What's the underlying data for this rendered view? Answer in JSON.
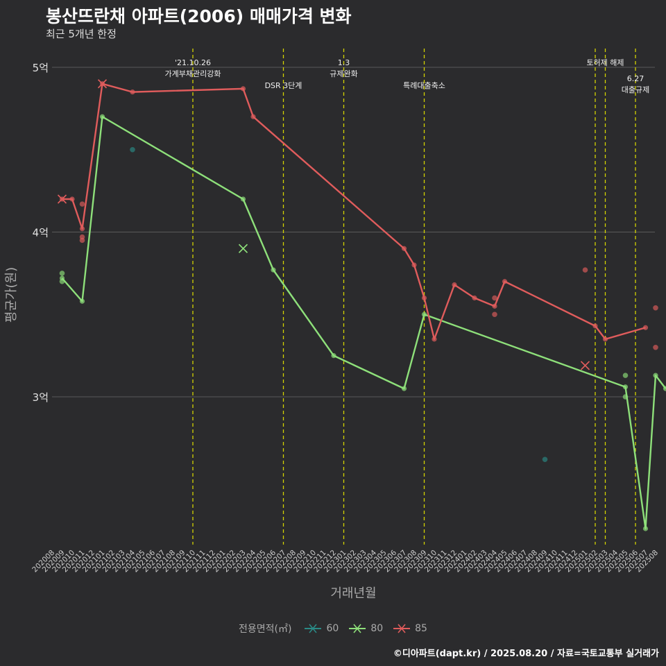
{
  "header": {
    "title": "봉산뜨란채 아파트(2006) 매매가격 변화",
    "subtitle": "최근 5개년 한정"
  },
  "caption": "©디아파트(dapt.kr) / 2025.08.20 / 자료=국토교통부 실거래가",
  "colors": {
    "60": "#2a8a86",
    "80": "#8ee07a",
    "85": "#e05c5c",
    "event": "#d4d400",
    "grid": "#5a5a5a",
    "background": "#2b2b2d"
  },
  "chart_data": {
    "type": "line",
    "xlabel": "거래년월",
    "ylabel": "평균가(원)",
    "ylim": [
      2.1,
      5.15
    ],
    "yticks": [
      {
        "value": 3,
        "label": "3억"
      },
      {
        "value": 4,
        "label": "4억"
      },
      {
        "value": 5,
        "label": "5억"
      }
    ],
    "categories": [
      "202008",
      "202009",
      "202010",
      "202011",
      "202012",
      "202101",
      "202102",
      "202103",
      "202104",
      "202105",
      "202106",
      "202107",
      "202108",
      "202109",
      "202110",
      "202111",
      "202112",
      "202201",
      "202202",
      "202203",
      "202204",
      "202205",
      "202206",
      "202207",
      "202208",
      "202209",
      "202210",
      "202211",
      "202212",
      "202301",
      "202302",
      "202303",
      "202304",
      "202305",
      "202306",
      "202307",
      "202308",
      "202309",
      "202310",
      "202311",
      "202312",
      "202401",
      "202402",
      "202403",
      "202404",
      "202405",
      "202406",
      "202407",
      "202408",
      "202409",
      "202410",
      "202411",
      "202412",
      "202501",
      "202502",
      "202503",
      "202504",
      "202505",
      "202506",
      "202507",
      "202508"
    ],
    "legend": {
      "title": "전용면적(㎡)",
      "entries": [
        "60",
        "80",
        "85"
      ],
      "placement": "bottom"
    },
    "series": [
      {
        "name": "60",
        "line": [],
        "points": [
          [
            8.0,
            4.5
          ],
          [
            49.0,
            2.62
          ]
        ],
        "crosses": []
      },
      {
        "name": "80",
        "line": [
          [
            1.0,
            3.72
          ],
          [
            3.0,
            3.58
          ],
          [
            5.0,
            4.7
          ],
          [
            19.0,
            4.2
          ],
          [
            22.0,
            3.77
          ],
          [
            28.0,
            3.25
          ],
          [
            35.0,
            3.05
          ],
          [
            37.0,
            3.5
          ],
          [
            57.0,
            3.06
          ],
          [
            59.0,
            2.2
          ],
          [
            60.0,
            3.13
          ],
          [
            61.0,
            3.05
          ]
        ],
        "points": [
          [
            1.0,
            3.75
          ],
          [
            1.0,
            3.7
          ],
          [
            57.0,
            3.13
          ],
          [
            57.0,
            3.0
          ]
        ],
        "crosses": [
          [
            19.0,
            3.9
          ]
        ]
      },
      {
        "name": "85",
        "line": [
          [
            1.0,
            4.2
          ],
          [
            2.0,
            4.2
          ],
          [
            3.0,
            4.02
          ],
          [
            5.0,
            4.9
          ],
          [
            8.0,
            4.85
          ],
          [
            19.0,
            4.87
          ],
          [
            20.0,
            4.7
          ],
          [
            35.0,
            3.9
          ],
          [
            36.0,
            3.8
          ],
          [
            37.0,
            3.6
          ],
          [
            38.0,
            3.35
          ],
          [
            40.0,
            3.68
          ],
          [
            42.0,
            3.6
          ],
          [
            44.0,
            3.55
          ],
          [
            45.0,
            3.7
          ],
          [
            54.0,
            3.43
          ],
          [
            55.0,
            3.35
          ],
          [
            59.0,
            3.42
          ]
        ],
        "points": [
          [
            3.0,
            4.17
          ],
          [
            3.0,
            3.97
          ],
          [
            3.0,
            3.95
          ],
          [
            44.0,
            3.6
          ],
          [
            44.0,
            3.5
          ],
          [
            53.0,
            3.77
          ],
          [
            60.0,
            3.54
          ],
          [
            60.0,
            3.3
          ]
        ],
        "crosses": [
          [
            1.0,
            4.2
          ],
          [
            5.0,
            4.9
          ],
          [
            53.0,
            3.19
          ]
        ]
      }
    ],
    "events": [
      {
        "x": 14.0,
        "lines": [
          "'21.10.26",
          "가계부채관리강화"
        ],
        "row": 0
      },
      {
        "x": 23.0,
        "lines": [
          "DSR 3단계"
        ],
        "row": 1
      },
      {
        "x": 29.0,
        "lines": [
          "1.3",
          "규제완화"
        ],
        "row": 0
      },
      {
        "x": 37.0,
        "lines": [
          "특례대출축소"
        ],
        "row": 1
      },
      {
        "x": 54.0,
        "lines": [],
        "row": 0
      },
      {
        "x": 55.0,
        "lines": [
          "토허제 해제"
        ],
        "row": 0
      },
      {
        "x": 58.0,
        "lines": [
          "6.27",
          "대출규제"
        ],
        "row": 2
      }
    ]
  }
}
